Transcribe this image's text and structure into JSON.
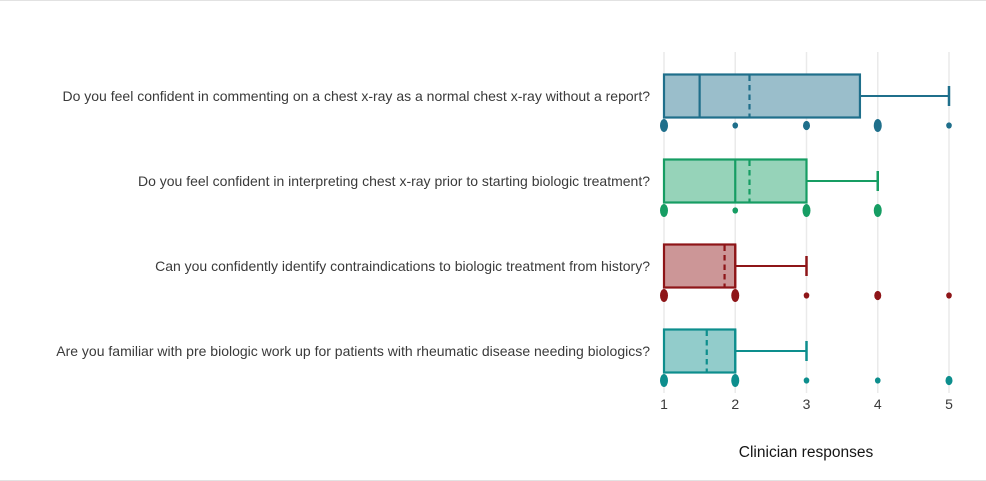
{
  "chart_data": {
    "type": "boxplot",
    "orientation": "horizontal",
    "title": "",
    "xlabel": "Clinician responses",
    "ylabel": "",
    "xlim": [
      1,
      5
    ],
    "x_ticks": [
      "1",
      "2",
      "3",
      "4",
      "5"
    ],
    "grid": "vertical-light",
    "rows": [
      {
        "label": "Do you feel confident in commenting on a chest x-ray as a normal chest x-ray without a report?",
        "stroke": "#1f6f8b",
        "fill": "#9abecb",
        "q1": 1,
        "median": 1.5,
        "mean": 2.2,
        "q3": 3.75,
        "whisker_min": 1,
        "whisker_max": 5,
        "points": [
          {
            "x": 1,
            "size": "lg"
          },
          {
            "x": 2,
            "size": "sm"
          },
          {
            "x": 3,
            "size": "md"
          },
          {
            "x": 4,
            "size": "lg"
          },
          {
            "x": 5,
            "size": "sm"
          }
        ]
      },
      {
        "label": "Do you feel confident in interpreting chest x-ray prior to starting biologic treatment?",
        "stroke": "#169d63",
        "fill": "#96d3b9",
        "q1": 1,
        "median": 2,
        "mean": 2.2,
        "q3": 3,
        "whisker_min": 1,
        "whisker_max": 4,
        "points": [
          {
            "x": 1,
            "size": "lg"
          },
          {
            "x": 2,
            "size": "sm"
          },
          {
            "x": 3,
            "size": "lg"
          },
          {
            "x": 4,
            "size": "lg"
          }
        ]
      },
      {
        "label": "Can you confidently identify contraindications to biologic treatment from history?",
        "stroke": "#8e1518",
        "fill": "#cc9697",
        "q1": 1,
        "median": 2,
        "mean": 1.85,
        "q3": 2,
        "whisker_min": 1,
        "whisker_max": 3,
        "points": [
          {
            "x": 1,
            "size": "lg"
          },
          {
            "x": 2,
            "size": "lg"
          },
          {
            "x": 3,
            "size": "sm"
          },
          {
            "x": 4,
            "size": "md"
          },
          {
            "x": 5,
            "size": "sm"
          }
        ]
      },
      {
        "label": "Are you familiar with pre biologic work up for patients with rheumatic disease needing biologics?",
        "stroke": "#0d8e8d",
        "fill": "#92cccb",
        "q1": 1,
        "median": 2,
        "mean": 1.6,
        "q3": 2,
        "whisker_min": 1,
        "whisker_max": 3,
        "points": [
          {
            "x": 1,
            "size": "lg"
          },
          {
            "x": 2,
            "size": "lg"
          },
          {
            "x": 3,
            "size": "sm"
          },
          {
            "x": 4,
            "size": "sm"
          },
          {
            "x": 5,
            "size": "md"
          }
        ]
      }
    ]
  }
}
